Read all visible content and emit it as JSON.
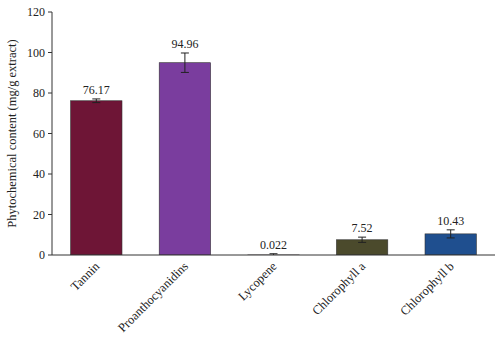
{
  "chart_data": {
    "type": "bar",
    "y_label": "Phytochemical content (mg/g extract)",
    "categories": [
      "Tannin",
      "Proanthocyanidins",
      "Lycopene",
      "Chlorophyll a",
      "Chlorophyll b"
    ],
    "values": [
      76.17,
      94.96,
      0.022,
      7.52,
      10.43
    ],
    "errors": [
      0.9,
      4.8,
      0.6,
      1.3,
      2.0
    ],
    "colors": [
      "#6e1536",
      "#7a3d9e",
      "#c0508a",
      "#4b4a2c",
      "#1f4f8f"
    ],
    "ylim": [
      0,
      120
    ],
    "yticks": [
      0,
      20,
      40,
      60,
      80,
      100,
      120
    ],
    "grid": false,
    "data_labels": true
  }
}
